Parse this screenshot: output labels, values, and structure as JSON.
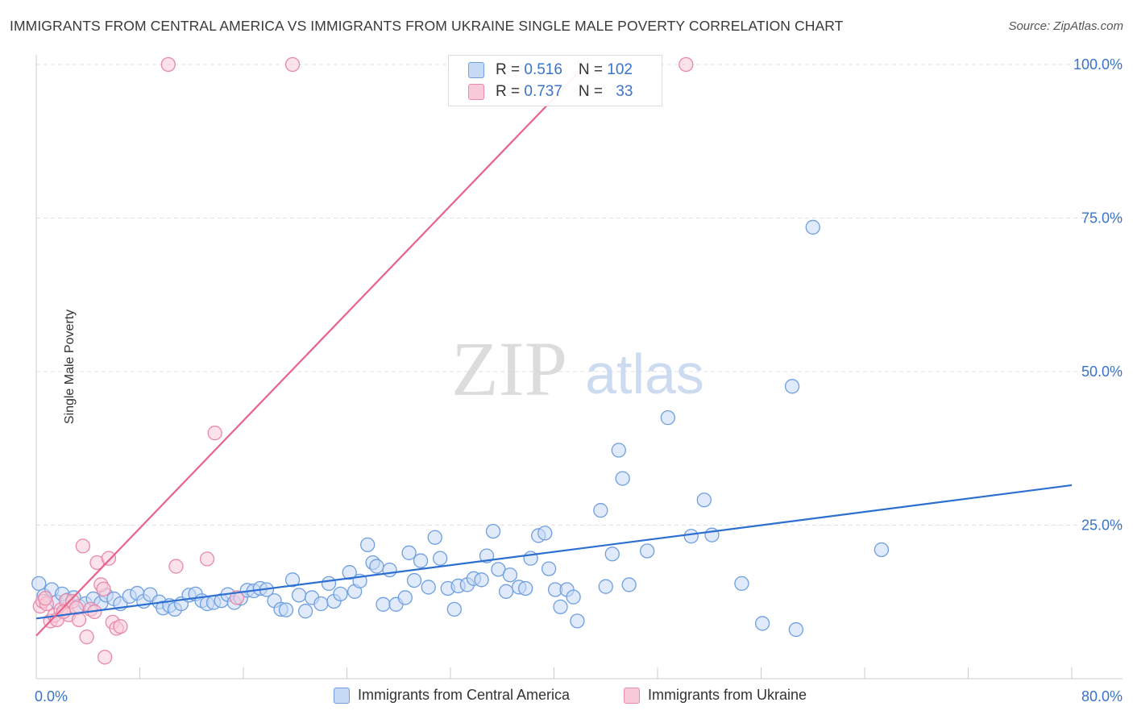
{
  "header": {
    "title": "IMMIGRANTS FROM CENTRAL AMERICA VS IMMIGRANTS FROM UKRAINE SINGLE MALE POVERTY CORRELATION CHART",
    "source": "Source: ZipAtlas.com"
  },
  "watermark": {
    "zip": "ZIP",
    "atlas": "atlas"
  },
  "stats": {
    "row1": {
      "r_label": "R = ",
      "r_value": "0.516",
      "n_label": "N = ",
      "n_value": "102"
    },
    "row2": {
      "r_label": "R = ",
      "r_value": "0.737",
      "n_label": "N = ",
      "n_value": "33"
    }
  },
  "legend": {
    "series1": "Immigrants from Central America",
    "series2": "Immigrants from Ukraine"
  },
  "colors": {
    "blue_fill": "#c6d9f5",
    "blue_stroke": "#6e9fe0",
    "blue_line": "#2c6fd1",
    "pink_fill": "#f9cad9",
    "pink_stroke": "#e88aa8",
    "pink_line": "#e8628a",
    "tick_text": "#3a73c8"
  },
  "chart_data": {
    "type": "scatter",
    "title": "IMMIGRANTS FROM CENTRAL AMERICA VS IMMIGRANTS FROM UKRAINE SINGLE MALE POVERTY CORRELATION CHART",
    "xlabel": "",
    "ylabel": "Single Male Poverty",
    "xlim": [
      0,
      80
    ],
    "ylim": [
      0,
      102
    ],
    "x_tick_labels": [
      "0.0%",
      "80.0%"
    ],
    "y_ticks": [
      {
        "value": 100,
        "label": "100.0%"
      },
      {
        "value": 75,
        "label": "75.0%"
      },
      {
        "value": 50,
        "label": "50.0%"
      },
      {
        "value": 25,
        "label": "25.0%"
      }
    ],
    "grid": true,
    "legend_position": "bottom",
    "series": [
      {
        "name": "Immigrants from Central America",
        "color": "#6e9fe0",
        "trendline": {
          "x": [
            0,
            80
          ],
          "y": [
            9.8,
            31.5
          ]
        },
        "points": [
          [
            0.2,
            15.5
          ],
          [
            0.6,
            13.5
          ],
          [
            1.2,
            14.5
          ],
          [
            1.6,
            12.5
          ],
          [
            2.0,
            13.8
          ],
          [
            2.4,
            12.8
          ],
          [
            2.9,
            13.2
          ],
          [
            3.3,
            11.8
          ],
          [
            3.8,
            12.2
          ],
          [
            4.4,
            13.0
          ],
          [
            5.0,
            12.3
          ],
          [
            5.4,
            13.6
          ],
          [
            6.0,
            13.0
          ],
          [
            6.5,
            12.2
          ],
          [
            7.2,
            13.4
          ],
          [
            7.8,
            13.9
          ],
          [
            8.3,
            12.6
          ],
          [
            8.8,
            13.7
          ],
          [
            9.5,
            12.5
          ],
          [
            9.8,
            11.5
          ],
          [
            10.3,
            11.9
          ],
          [
            10.7,
            11.3
          ],
          [
            11.2,
            12.2
          ],
          [
            11.8,
            13.6
          ],
          [
            12.3,
            13.8
          ],
          [
            12.8,
            12.7
          ],
          [
            13.2,
            12.2
          ],
          [
            13.7,
            12.4
          ],
          [
            14.3,
            12.7
          ],
          [
            14.8,
            13.7
          ],
          [
            15.3,
            12.4
          ],
          [
            15.8,
            13.1
          ],
          [
            16.3,
            14.4
          ],
          [
            16.8,
            14.3
          ],
          [
            17.3,
            14.7
          ],
          [
            17.8,
            14.5
          ],
          [
            18.4,
            12.7
          ],
          [
            18.9,
            11.3
          ],
          [
            19.3,
            11.2
          ],
          [
            19.8,
            16.1
          ],
          [
            20.3,
            13.6
          ],
          [
            20.8,
            11.0
          ],
          [
            21.3,
            13.2
          ],
          [
            22.0,
            12.2
          ],
          [
            22.6,
            15.5
          ],
          [
            23.0,
            12.6
          ],
          [
            23.5,
            13.8
          ],
          [
            24.2,
            17.3
          ],
          [
            24.6,
            14.2
          ],
          [
            25.0,
            15.9
          ],
          [
            25.6,
            21.8
          ],
          [
            26.0,
            18.9
          ],
          [
            26.3,
            18.3
          ],
          [
            26.8,
            12.1
          ],
          [
            27.3,
            17.7
          ],
          [
            27.8,
            12.1
          ],
          [
            28.5,
            13.2
          ],
          [
            28.8,
            20.5
          ],
          [
            29.2,
            16.0
          ],
          [
            29.7,
            19.2
          ],
          [
            30.3,
            14.9
          ],
          [
            30.8,
            23.0
          ],
          [
            31.2,
            19.6
          ],
          [
            31.8,
            14.7
          ],
          [
            32.3,
            11.3
          ],
          [
            32.6,
            15.1
          ],
          [
            33.3,
            15.3
          ],
          [
            33.8,
            16.3
          ],
          [
            34.4,
            16.1
          ],
          [
            34.8,
            20.0
          ],
          [
            35.3,
            24.0
          ],
          [
            35.7,
            17.8
          ],
          [
            36.3,
            14.2
          ],
          [
            36.6,
            16.9
          ],
          [
            37.3,
            14.9
          ],
          [
            37.8,
            14.7
          ],
          [
            38.2,
            19.6
          ],
          [
            38.8,
            23.3
          ],
          [
            39.3,
            23.7
          ],
          [
            39.6,
            17.9
          ],
          [
            40.1,
            14.5
          ],
          [
            40.5,
            11.7
          ],
          [
            41.0,
            14.5
          ],
          [
            41.5,
            13.3
          ],
          [
            41.8,
            9.4
          ],
          [
            43.6,
            27.4
          ],
          [
            44.0,
            15.0
          ],
          [
            44.5,
            20.3
          ],
          [
            45.0,
            37.2
          ],
          [
            45.3,
            32.6
          ],
          [
            45.8,
            15.3
          ],
          [
            47.2,
            20.8
          ],
          [
            48.8,
            42.5
          ],
          [
            50.6,
            23.2
          ],
          [
            51.6,
            29.1
          ],
          [
            52.2,
            23.4
          ],
          [
            54.5,
            15.5
          ],
          [
            56.1,
            9.0
          ],
          [
            58.4,
            47.6
          ],
          [
            58.7,
            8.0
          ],
          [
            60.0,
            73.5
          ],
          [
            65.3,
            21.0
          ]
        ]
      },
      {
        "name": "Immigrants from Ukraine",
        "color": "#e88aa8",
        "trendline": {
          "x": [
            0,
            42.5
          ],
          "y": [
            7.0,
            100.0
          ]
        },
        "points": [
          [
            0.3,
            11.8
          ],
          [
            0.5,
            12.6
          ],
          [
            0.8,
            12.2
          ],
          [
            1.1,
            9.4
          ],
          [
            1.4,
            10.3
          ],
          [
            1.6,
            9.6
          ],
          [
            1.9,
            11.2
          ],
          [
            2.3,
            12.7
          ],
          [
            2.5,
            10.4
          ],
          [
            2.8,
            12.6
          ],
          [
            3.1,
            11.5
          ],
          [
            3.3,
            9.6
          ],
          [
            3.6,
            21.6
          ],
          [
            3.9,
            6.8
          ],
          [
            4.2,
            11.3
          ],
          [
            4.5,
            10.9
          ],
          [
            4.7,
            18.9
          ],
          [
            5.0,
            15.3
          ],
          [
            5.2,
            14.6
          ],
          [
            5.3,
            3.5
          ],
          [
            5.6,
            19.6
          ],
          [
            5.9,
            9.2
          ],
          [
            6.2,
            8.2
          ],
          [
            6.5,
            8.5
          ],
          [
            10.2,
            100.0
          ],
          [
            10.8,
            18.3
          ],
          [
            13.2,
            19.5
          ],
          [
            13.8,
            40.0
          ],
          [
            15.5,
            13.2
          ],
          [
            19.8,
            100.0
          ],
          [
            50.2,
            100.0
          ],
          [
            0.7,
            13.1
          ],
          [
            2.1,
            10.9
          ]
        ]
      }
    ]
  }
}
